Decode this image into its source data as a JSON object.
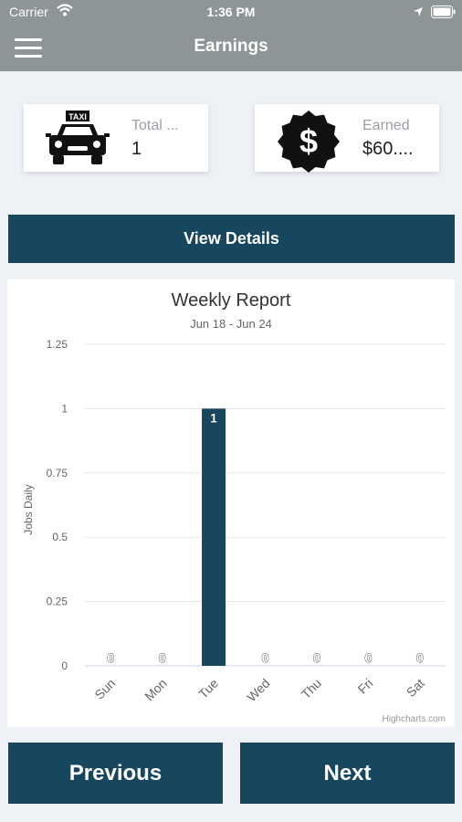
{
  "status_bar": {
    "carrier": "Carrier",
    "time": "1:36 PM"
  },
  "nav": {
    "title": "Earnings",
    "menu_icon": "hamburger-menu-icon"
  },
  "cards": [
    {
      "icon": "taxi-icon",
      "label": "Total ...",
      "value": "1"
    },
    {
      "icon": "dollar-badge-icon",
      "label": "Earned",
      "value": "$60...."
    }
  ],
  "view_details_label": "View Details",
  "chart_data": {
    "type": "bar",
    "title": "Weekly Report",
    "subtitle": "Jun 18 - Jun 24",
    "ylabel": "Jobs Daily",
    "xlabel": "",
    "categories": [
      "Sun",
      "Mon",
      "Tue",
      "Wed",
      "Thu",
      "Fri",
      "Sat"
    ],
    "values": [
      0,
      0,
      1,
      0,
      0,
      0,
      0
    ],
    "ylim": [
      0,
      1.25
    ],
    "yticks": [
      "0",
      "0.25",
      "0.5",
      "0.75",
      "1",
      "1.25"
    ],
    "credit": "Highcharts.com",
    "grid": true,
    "bar_color": "#17475f"
  },
  "buttons": {
    "previous": "Previous",
    "next": "Next"
  },
  "colors": {
    "primary": "#17475f",
    "header": "#8e9596",
    "background": "#eef1f5"
  }
}
